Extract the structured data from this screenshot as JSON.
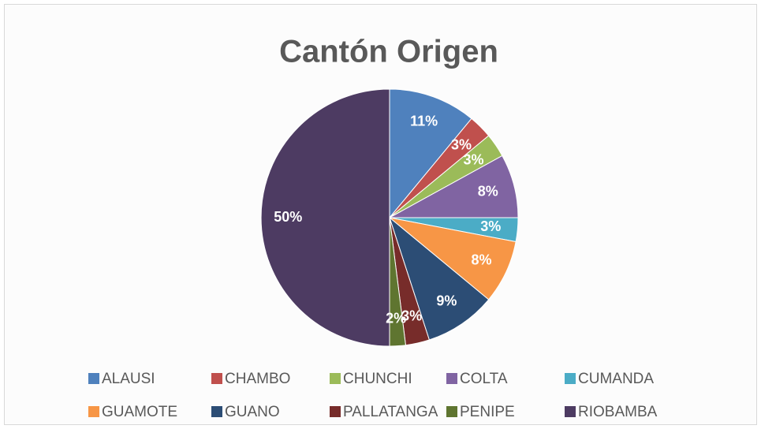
{
  "chart_data": {
    "type": "pie",
    "title": "Cantón  Origen",
    "categories": [
      "ALAUSI",
      "CHAMBO",
      "CHUNCHI",
      "COLTA",
      "CUMANDA",
      "GUAMOTE",
      "GUANO",
      "PALLATANGA",
      "PENIPE",
      "RIOBAMBA"
    ],
    "values": [
      11,
      3,
      3,
      8,
      3,
      8,
      9,
      3,
      2,
      50
    ],
    "value_labels": [
      "11%",
      "3%",
      "3%",
      "8%",
      "3%",
      "8%",
      "9%",
      "3%",
      "2%",
      "50%"
    ],
    "colors": [
      "#4f81bd",
      "#c0504d",
      "#9bbb59",
      "#8064a2",
      "#4bacc6",
      "#f79646",
      "#2c4d75",
      "#772c2a",
      "#5f7530",
      "#4d3b62"
    ],
    "legend": "bottom"
  }
}
